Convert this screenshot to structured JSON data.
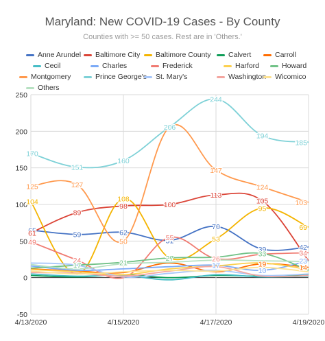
{
  "chart_data": {
    "type": "line",
    "title": "Maryland: New COVID-19 Cases - By County",
    "subtitle": "Counties with >= 50 cases. Rest are in 'Others.'",
    "x": [
      "4/13/2020",
      "4/14/2020",
      "4/15/2020",
      "4/16/2020",
      "4/17/2020",
      "4/18/2020",
      "4/19/2020"
    ],
    "x_tick_labels": [
      "4/13/2020",
      "4/15/2020",
      "4/17/2020",
      "4/19/2020"
    ],
    "ylim": [
      -50,
      250
    ],
    "y_ticks": [
      -50,
      0,
      50,
      100,
      150,
      200,
      250
    ],
    "grid": true,
    "legend_position": "top",
    "series": [
      {
        "name": "Anne Arundel",
        "color": "#4472c4",
        "values": [
          65,
          59,
          62,
          51,
          70,
          39,
          42
        ]
      },
      {
        "name": "Baltimore City",
        "color": "#db4437",
        "values": [
          61,
          89,
          98,
          100,
          113,
          105,
          23
        ]
      },
      {
        "name": "Baltimore County",
        "color": "#f4b400",
        "values": [
          104,
          5,
          108,
          27,
          53,
          95,
          69
        ]
      },
      {
        "name": "Calvert",
        "color": "#0f9d58",
        "values": [
          3,
          1,
          4,
          0,
          3,
          2,
          4
        ]
      },
      {
        "name": "Carroll",
        "color": "#ff6d01",
        "values": [
          12,
          9,
          7,
          20,
          8,
          19,
          14
        ]
      },
      {
        "name": "Cecil",
        "color": "#46bdc6",
        "values": [
          5,
          2,
          3,
          -3,
          4,
          1,
          2
        ]
      },
      {
        "name": "Charles",
        "color": "#7baaf7",
        "values": [
          16,
          10,
          12,
          15,
          17,
          10,
          23
        ]
      },
      {
        "name": "Frederick",
        "color": "#f07b72",
        "values": [
          49,
          24,
          0,
          55,
          26,
          32,
          34
        ]
      },
      {
        "name": "Harford",
        "color": "#fcd04f",
        "values": [
          11,
          8,
          4,
          12,
          16,
          20,
          11
        ]
      },
      {
        "name": "Howard",
        "color": "#71c287",
        "values": [
          13,
          17,
          21,
          27,
          28,
          33,
          10
        ]
      },
      {
        "name": "Montgomery",
        "color": "#ff994d",
        "values": [
          125,
          127,
          50,
          206,
          147,
          124,
          103
        ]
      },
      {
        "name": "Prince George's",
        "color": "#7ed1d7",
        "values": [
          170,
          151,
          160,
          206,
          244,
          194,
          185
        ]
      },
      {
        "name": "St. Mary's",
        "color": "#a8c7fa",
        "values": [
          20,
          17,
          1,
          6,
          10,
          3,
          5
        ]
      },
      {
        "name": "Washington",
        "color": "#f4a6a0",
        "values": [
          7,
          6,
          2,
          9,
          15,
          2,
          3
        ]
      },
      {
        "name": "Wicomico",
        "color": "#fde293",
        "values": [
          9,
          5,
          8,
          10,
          9,
          14,
          8
        ]
      },
      {
        "name": "Others",
        "color": "#b7e1c2",
        "values": [
          18,
          12,
          19,
          21,
          24,
          23,
          22
        ]
      }
    ],
    "data_labels": [
      {
        "series": 0,
        "points": [
          0,
          1,
          2,
          3,
          4,
          5,
          6
        ]
      },
      {
        "series": 1,
        "points": [
          0,
          1,
          2,
          3,
          4,
          5,
          6
        ]
      },
      {
        "series": 2,
        "points": [
          0,
          2,
          4,
          5,
          6
        ]
      },
      {
        "series": 10,
        "points": [
          0,
          1,
          2,
          3,
          4,
          5,
          6
        ]
      },
      {
        "series": 11,
        "points": [
          0,
          1,
          2,
          3,
          4,
          5,
          6
        ]
      },
      {
        "series": 7,
        "points": [
          0,
          1,
          3,
          4,
          6
        ]
      },
      {
        "series": 9,
        "points": [
          1,
          2,
          3,
          5
        ]
      },
      {
        "series": 6,
        "points": [
          4,
          5,
          6
        ]
      },
      {
        "series": 4,
        "points": [
          5,
          6
        ]
      }
    ]
  }
}
